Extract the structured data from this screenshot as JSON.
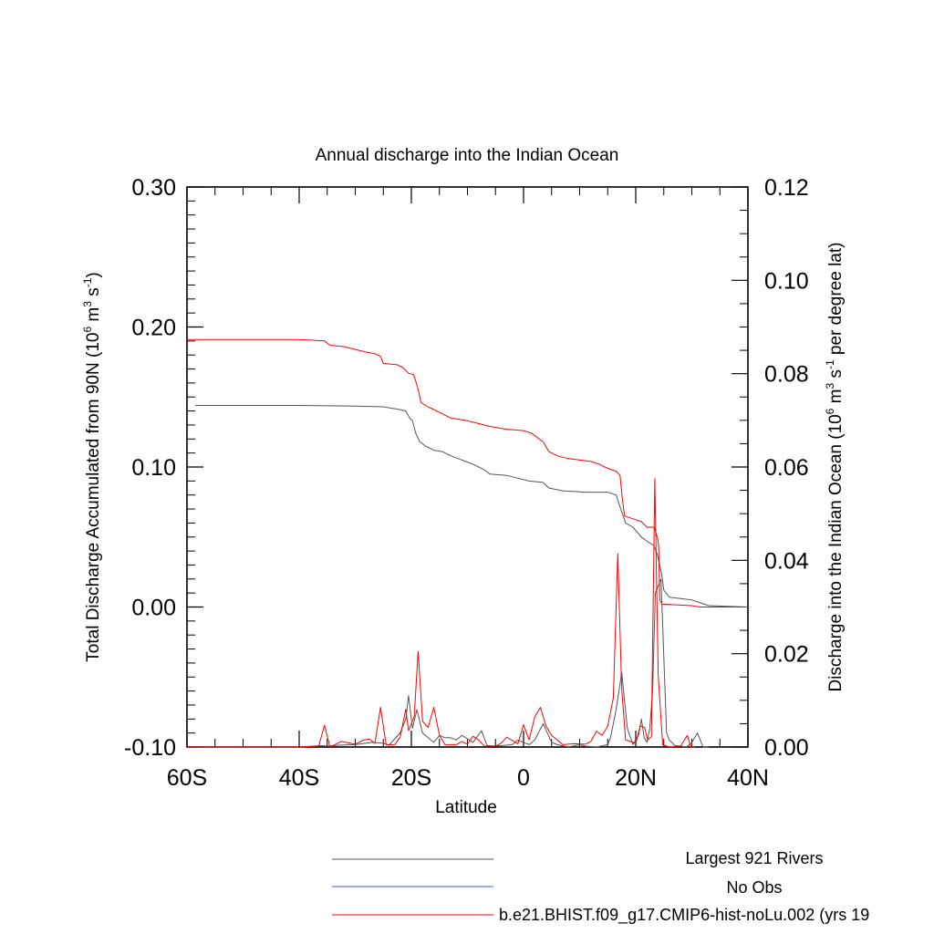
{
  "chart_data": {
    "type": "line",
    "title": "Annual discharge into the Indian Ocean",
    "xlabel": "Latitude",
    "ylabel_left_main": "Total Discharge Accumulated from 90N (10",
    "ylabel_left_sup1": "6",
    "ylabel_left_mid": " m",
    "ylabel_left_sup2": "3",
    "ylabel_left_mid2": " s",
    "ylabel_left_sup3": "-1",
    "ylabel_left_end": ")",
    "ylabel_right_main": "Discharge into the Indian Ocean (10",
    "ylabel_right_sup1": "6",
    "ylabel_right_mid": " m",
    "ylabel_right_sup2": "3",
    "ylabel_right_mid2": " s",
    "ylabel_right_sup3": "-1",
    "ylabel_right_end": " per degree lat)",
    "xlim": [
      -60,
      40
    ],
    "ylim_left": [
      -0.1,
      0.3
    ],
    "ylim_right": [
      0.0,
      0.12
    ],
    "x_ticks": [
      {
        "value": -60,
        "label": "60S"
      },
      {
        "value": -40,
        "label": "40S"
      },
      {
        "value": -20,
        "label": "20S"
      },
      {
        "value": 0,
        "label": "0"
      },
      {
        "value": 20,
        "label": "20N"
      },
      {
        "value": 40,
        "label": "40N"
      }
    ],
    "y_ticks_left": [
      {
        "value": -0.1,
        "label": "-0.10"
      },
      {
        "value": 0.0,
        "label": "0.00"
      },
      {
        "value": 0.1,
        "label": "0.10"
      },
      {
        "value": 0.2,
        "label": "0.20"
      },
      {
        "value": 0.3,
        "label": "0.30"
      }
    ],
    "y_ticks_right": [
      {
        "value": 0.0,
        "label": "0.00"
      },
      {
        "value": 0.02,
        "label": "0.02"
      },
      {
        "value": 0.04,
        "label": "0.04"
      },
      {
        "value": 0.06,
        "label": "0.06"
      },
      {
        "value": 0.08,
        "label": "0.08"
      },
      {
        "value": 0.1,
        "label": "0.10"
      },
      {
        "value": 0.12,
        "label": "0.12"
      }
    ],
    "legend_entries": [
      {
        "label": "Largest 921 Rivers",
        "color": "#555555"
      },
      {
        "label": "No Obs",
        "color": "#3355ff"
      },
      {
        "label": "b.e21.BHIST.f09_g17.CMIP6-hist-noLu.002 (yrs 19",
        "color": "#ff0000"
      }
    ],
    "series": [
      {
        "axis": "left",
        "color": "#555555",
        "kind": "accumulated",
        "points": [
          [
            -58.5,
            0.144
          ],
          [
            -40,
            0.144
          ],
          [
            -30,
            0.1435
          ],
          [
            -25,
            0.143
          ],
          [
            -22,
            0.141
          ],
          [
            -21,
            0.14
          ],
          [
            -20.3,
            0.135
          ],
          [
            -19.8,
            0.133
          ],
          [
            -19.2,
            0.124
          ],
          [
            -18.5,
            0.118
          ],
          [
            -17.5,
            0.115
          ],
          [
            -16,
            0.112
          ],
          [
            -14.5,
            0.111
          ],
          [
            -13,
            0.108
          ],
          [
            -11,
            0.105
          ],
          [
            -9,
            0.102
          ],
          [
            -7,
            0.098
          ],
          [
            -6,
            0.095
          ],
          [
            -3,
            0.094
          ],
          [
            -1,
            0.092
          ],
          [
            1,
            0.09
          ],
          [
            3.5,
            0.089
          ],
          [
            4.5,
            0.085
          ],
          [
            7,
            0.083
          ],
          [
            11,
            0.082
          ],
          [
            15,
            0.082
          ],
          [
            16.5,
            0.08
          ],
          [
            17.5,
            0.068
          ],
          [
            18.2,
            0.06
          ],
          [
            19.5,
            0.057
          ],
          [
            21,
            0.05
          ],
          [
            22,
            0.047
          ],
          [
            23.2,
            0.044
          ],
          [
            23.8,
            0.038
          ],
          [
            24.6,
            0.024
          ],
          [
            25,
            0.012
          ],
          [
            26,
            0.007
          ],
          [
            28,
            0.006
          ],
          [
            30,
            0.005
          ],
          [
            31.5,
            0.003
          ],
          [
            33,
            0.001
          ],
          [
            40,
            0.0
          ]
        ]
      },
      {
        "axis": "left",
        "color": "#ff0000",
        "kind": "accumulated",
        "points": [
          [
            -60,
            0.191
          ],
          [
            -40,
            0.191
          ],
          [
            -35.5,
            0.19
          ],
          [
            -34.5,
            0.187
          ],
          [
            -32,
            0.186
          ],
          [
            -30,
            0.184
          ],
          [
            -28,
            0.182
          ],
          [
            -26.5,
            0.181
          ],
          [
            -25.5,
            0.179
          ],
          [
            -25,
            0.174
          ],
          [
            -22.5,
            0.173
          ],
          [
            -21.5,
            0.171
          ],
          [
            -20.5,
            0.167
          ],
          [
            -19.6,
            0.166
          ],
          [
            -19.2,
            0.161
          ],
          [
            -18.7,
            0.154
          ],
          [
            -18.3,
            0.146
          ],
          [
            -17,
            0.143
          ],
          [
            -15,
            0.139
          ],
          [
            -13,
            0.135
          ],
          [
            -10,
            0.133
          ],
          [
            -8,
            0.131
          ],
          [
            -6,
            0.129
          ],
          [
            -3,
            0.127
          ],
          [
            0,
            0.126
          ],
          [
            1.5,
            0.124
          ],
          [
            3.5,
            0.118
          ],
          [
            4.5,
            0.111
          ],
          [
            6,
            0.108
          ],
          [
            8,
            0.106
          ],
          [
            12,
            0.104
          ],
          [
            13.5,
            0.102
          ],
          [
            15,
            0.099
          ],
          [
            16.5,
            0.097
          ],
          [
            17.2,
            0.094
          ],
          [
            17.6,
            0.078
          ],
          [
            18,
            0.065
          ],
          [
            19.5,
            0.063
          ],
          [
            21,
            0.061
          ],
          [
            22,
            0.057
          ],
          [
            23.3,
            0.057
          ],
          [
            23.9,
            0.049
          ],
          [
            24.1,
            0.043
          ],
          [
            24.3,
            0.005
          ],
          [
            24.7,
            0.002
          ],
          [
            30,
            0.001
          ],
          [
            31.5,
            0.0
          ],
          [
            40,
            0.0
          ]
        ]
      },
      {
        "axis": "right",
        "color": "#555555",
        "kind": "per_degree",
        "points": [
          [
            -60,
            0.0
          ],
          [
            -50,
            0.0
          ],
          [
            -40,
            0.0
          ],
          [
            -36,
            0.0003
          ],
          [
            -35,
            0.0002
          ],
          [
            -33,
            0.0004
          ],
          [
            -30,
            0.0005
          ],
          [
            -27,
            0.001
          ],
          [
            -25,
            0.0008
          ],
          [
            -24,
            0.0004
          ],
          [
            -22,
            0.003
          ],
          [
            -21,
            0.006
          ],
          [
            -20.5,
            0.011
          ],
          [
            -19.8,
            0.004
          ],
          [
            -19,
            0.008
          ],
          [
            -18,
            0.003
          ],
          [
            -17,
            0.002
          ],
          [
            -16,
            0.001
          ],
          [
            -15,
            0.0025
          ],
          [
            -14,
            0.002
          ],
          [
            -13,
            0.002
          ],
          [
            -12,
            0.0015
          ],
          [
            -11,
            0.0025
          ],
          [
            -9,
            0.001
          ],
          [
            -7.5,
            0.0035
          ],
          [
            -6.5,
            0.0003
          ],
          [
            -5,
            0.0002
          ],
          [
            -2,
            0.0005
          ],
          [
            -1,
            0.0015
          ],
          [
            0,
            0.001
          ],
          [
            1,
            0.0005
          ],
          [
            2,
            0.0015
          ],
          [
            3.5,
            0.005
          ],
          [
            5,
            0.001
          ],
          [
            6,
            0.0005
          ],
          [
            8,
            0.0
          ],
          [
            10,
            0.0005
          ],
          [
            11,
            0.0002
          ],
          [
            13,
            0.0
          ],
          [
            15,
            0.0005
          ],
          [
            15.5,
            0.002
          ],
          [
            16.5,
            0.008
          ],
          [
            17.5,
            0.016
          ],
          [
            18.5,
            0.004
          ],
          [
            19.5,
            0.0005
          ],
          [
            20.5,
            0.0025
          ],
          [
            21,
            0.006
          ],
          [
            21.5,
            0.002
          ],
          [
            22,
            0.001
          ],
          [
            22.5,
            0.004
          ],
          [
            23,
            0.012
          ],
          [
            23.5,
            0.033
          ],
          [
            24.5,
            0.036
          ],
          [
            25.5,
            0.003
          ],
          [
            26,
            0.0015
          ],
          [
            27,
            0.0003
          ],
          [
            28,
            0.0002
          ],
          [
            29,
            0.0
          ],
          [
            30,
            0.001
          ],
          [
            31,
            0.003
          ],
          [
            32,
            0.0
          ],
          [
            33,
            0.0
          ]
        ]
      },
      {
        "axis": "right",
        "color": "#ff0000",
        "kind": "per_degree",
        "points": [
          [
            -60,
            0.0
          ],
          [
            -40,
            0.0
          ],
          [
            -36.5,
            0.0002
          ],
          [
            -35.5,
            0.0047
          ],
          [
            -34.5,
            0.0
          ],
          [
            -32.5,
            0.0012
          ],
          [
            -30,
            0.0006
          ],
          [
            -28.5,
            0.0015
          ],
          [
            -27.5,
            0.0017
          ],
          [
            -26.5,
            0.0008
          ],
          [
            -25.5,
            0.0085
          ],
          [
            -24.5,
            0.0005
          ],
          [
            -23,
            0.0005
          ],
          [
            -22,
            0.0021
          ],
          [
            -21,
            0.0081
          ],
          [
            -20.5,
            0.0035
          ],
          [
            -19.5,
            0.0065
          ],
          [
            -18.8,
            0.0205
          ],
          [
            -18,
            0.0055
          ],
          [
            -17,
            0.0042
          ],
          [
            -16,
            0.0085
          ],
          [
            -15,
            0.0025
          ],
          [
            -14,
            0.0005
          ],
          [
            -12,
            0.0005
          ],
          [
            -11,
            0.0012
          ],
          [
            -10,
            0.0006
          ],
          [
            -9,
            0.0023
          ],
          [
            -8,
            0.0015
          ],
          [
            -7,
            0.0002
          ],
          [
            -5,
            0.0002
          ],
          [
            -4,
            0.0008
          ],
          [
            -3,
            0.0021
          ],
          [
            -2,
            0.0014
          ],
          [
            -1,
            0.0007
          ],
          [
            0,
            0.0048
          ],
          [
            1,
            0.0015
          ],
          [
            2,
            0.0065
          ],
          [
            3,
            0.0085
          ],
          [
            4,
            0.0045
          ],
          [
            5,
            0.0025
          ],
          [
            7,
            0.0005
          ],
          [
            9,
            0.0007
          ],
          [
            11,
            0.0006
          ],
          [
            12,
            0.0012
          ],
          [
            13,
            0.0034
          ],
          [
            14,
            0.0025
          ],
          [
            15,
            0.0045
          ],
          [
            16,
            0.0105
          ],
          [
            16.8,
            0.0415
          ],
          [
            17.5,
            0.0125
          ],
          [
            18.2,
            0.0015
          ],
          [
            19,
            0.0012
          ],
          [
            20,
            0.0008
          ],
          [
            20.8,
            0.0045
          ],
          [
            21.6,
            0.0042
          ],
          [
            22.1,
            0.0015
          ],
          [
            22.8,
            0.0022
          ],
          [
            23.4,
            0.0575
          ],
          [
            24,
            0.0155
          ],
          [
            24.8,
            0.0005
          ],
          [
            26,
            0.0
          ],
          [
            28,
            0.0002
          ],
          [
            29.2,
            0.0025
          ],
          [
            29.8,
            0.0
          ],
          [
            30.5,
            0.0
          ]
        ]
      }
    ]
  }
}
